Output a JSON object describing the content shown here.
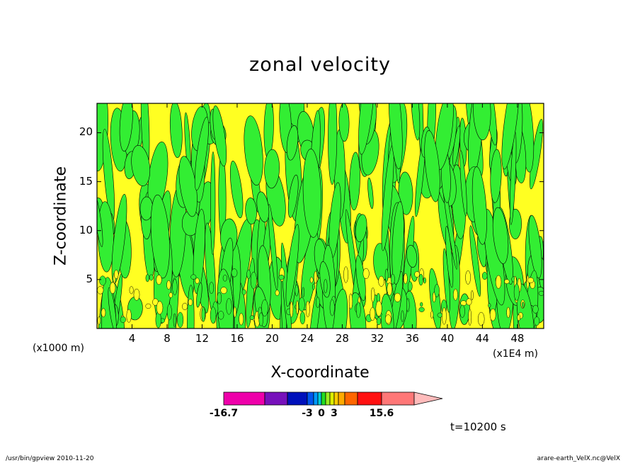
{
  "chart_data": {
    "type": "heatmap",
    "title": "zonal velocity",
    "xlabel": "X-coordinate",
    "ylabel": "Z-coordinate",
    "x_unit_label": "(x1000 m)",
    "x_scale_label": "(x1E4 m)",
    "x_ticks": [
      4,
      8,
      12,
      16,
      20,
      24,
      28,
      32,
      36,
      40,
      44,
      48
    ],
    "y_ticks": [
      5,
      10,
      15,
      20
    ],
    "xlim": [
      0,
      51
    ],
    "ylim": [
      0,
      23
    ],
    "grid": false,
    "fill_colors": {
      "negative": "#33ee33",
      "positive": "#ffff22"
    },
    "colorbar": {
      "colors": [
        "#ee00aa",
        "#7711bb",
        "#0011bb",
        "#0055ee",
        "#0099ff",
        "#00ccdd",
        "#22dd22",
        "#99ee22",
        "#ddee00",
        "#ffcc00",
        "#ffaa00",
        "#ff6600",
        "#ff1111",
        "#ff7777"
      ],
      "extend_color": "#ffbbbb",
      "tick_labels": [
        "-16.7",
        "-3",
        "0",
        "3",
        "15.6"
      ]
    },
    "time_label": "t=10200 s"
  },
  "footer": {
    "left": "/usr/bin/gpview   2010-11-20",
    "right": "arare-earth_VelX.nc@VelX"
  }
}
